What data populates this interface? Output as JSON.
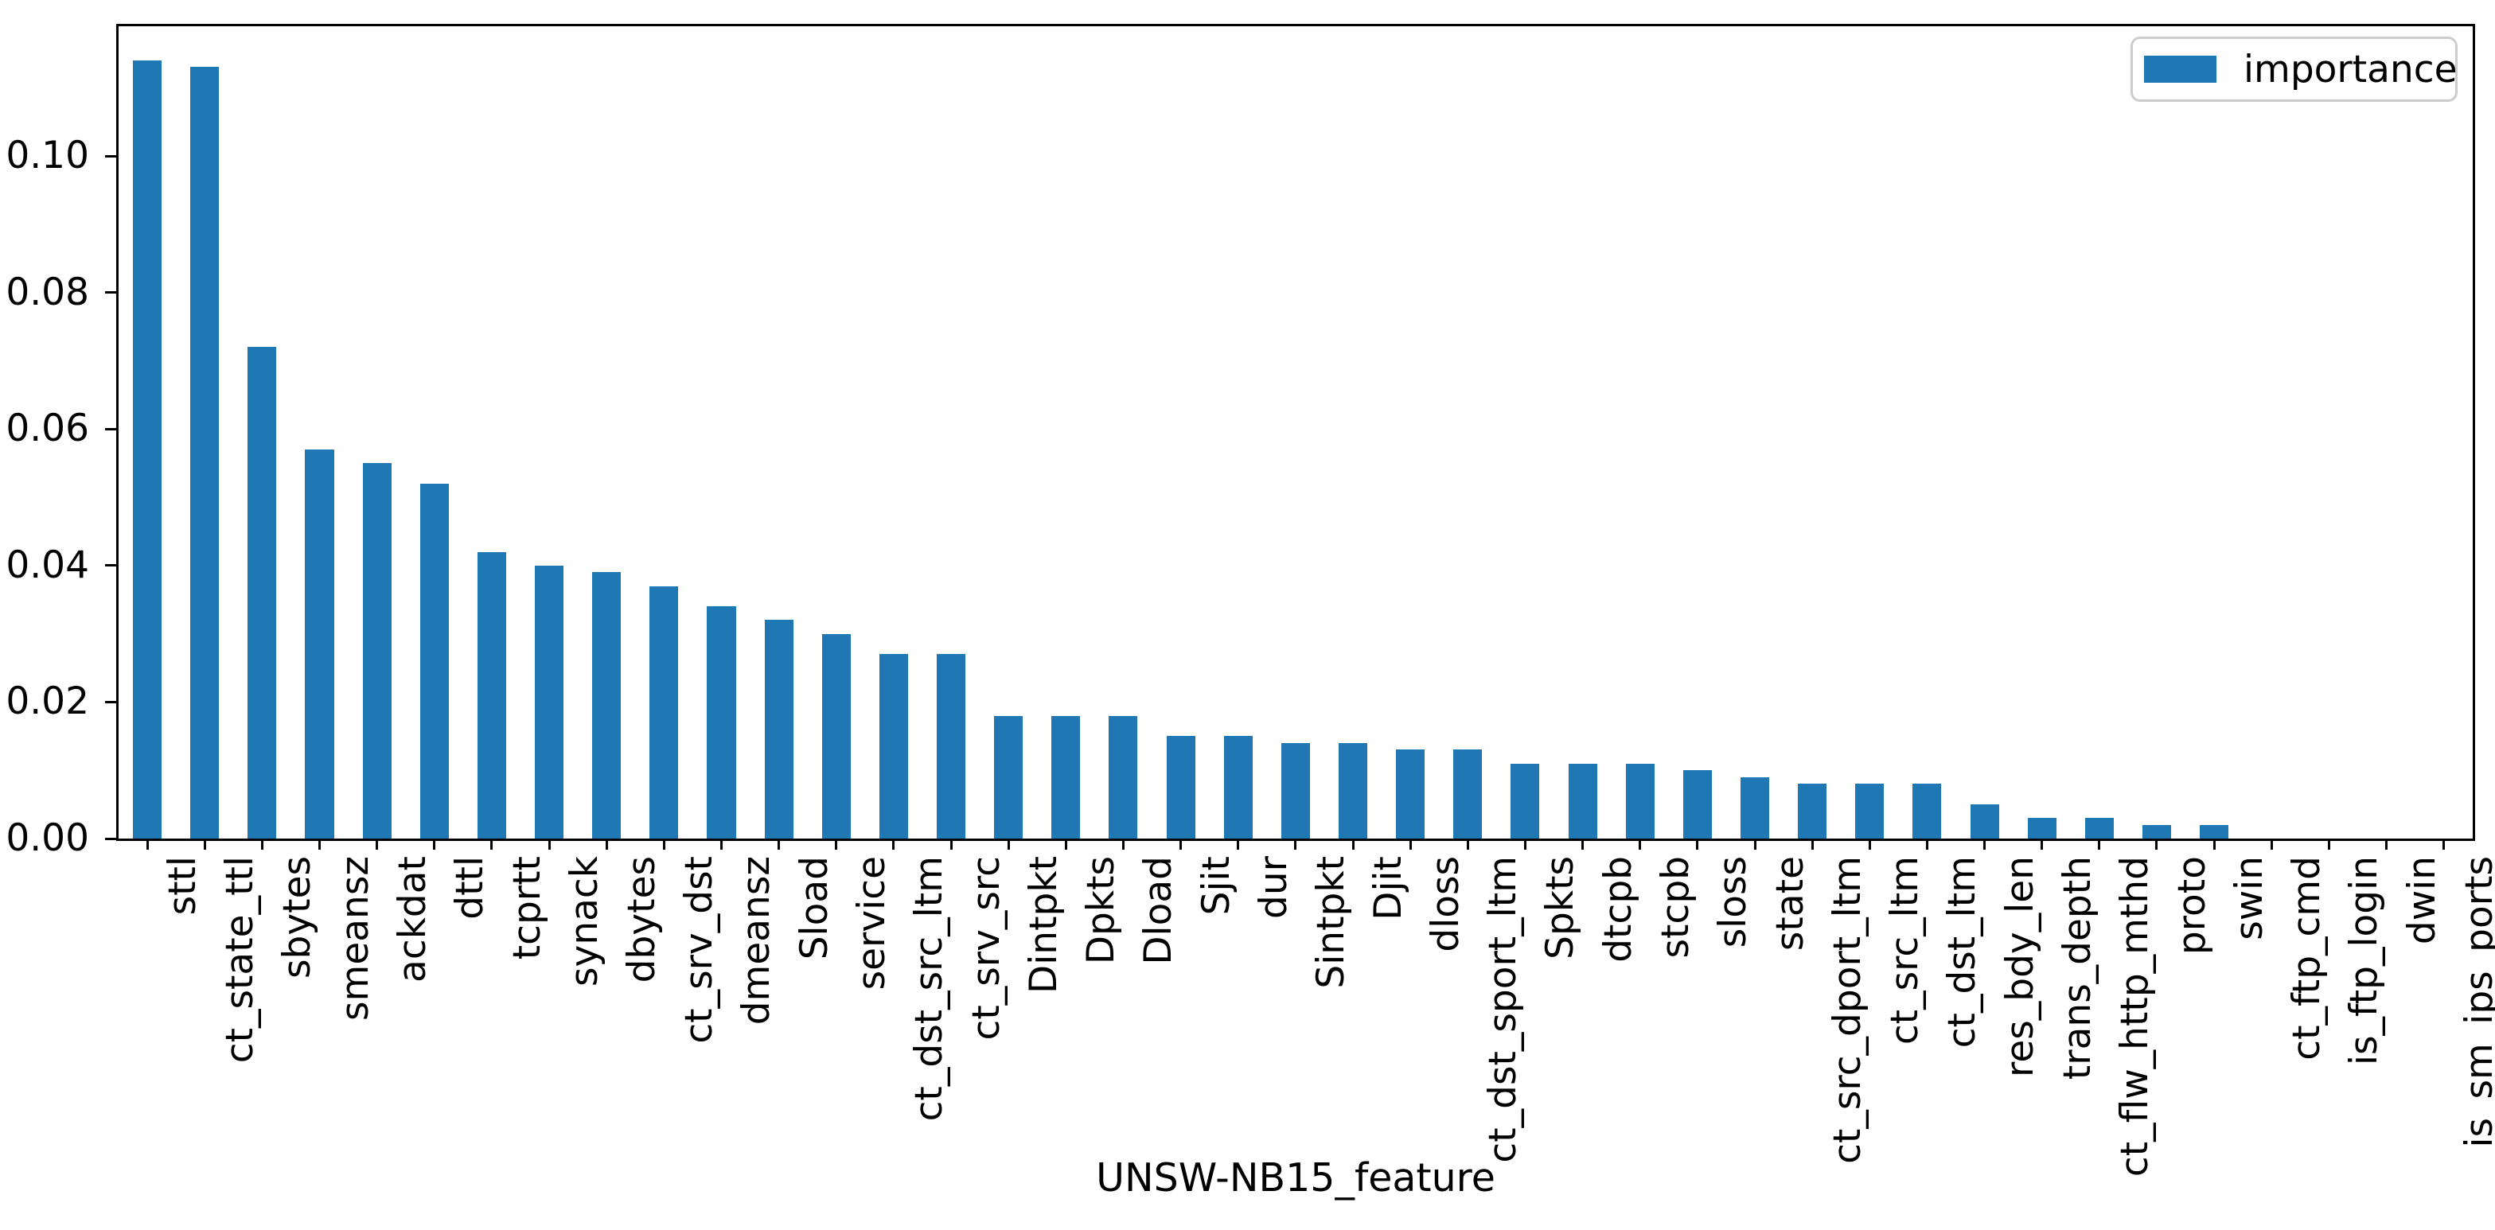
{
  "chart_data": {
    "type": "bar",
    "title": "",
    "xlabel": "UNSW-NB15_feature",
    "ylabel": "",
    "legend": {
      "label": "importance",
      "position": "upper right",
      "swatch_color": "#1f77b4"
    },
    "bar_color": "#1f77b4",
    "axis_color": "#000000",
    "background_color": "#ffffff",
    "grid": false,
    "ylim": [
      0,
      0.119
    ],
    "ytick_labels": [
      "0.00",
      "0.02",
      "0.04",
      "0.06",
      "0.08",
      "0.10"
    ],
    "ytick_values": [
      0.0,
      0.02,
      0.04,
      0.06,
      0.08,
      0.1
    ],
    "categories": [
      "sttl",
      "ct_state_ttl",
      "sbytes",
      "smeansz",
      "ackdat",
      "dttl",
      "tcprtt",
      "synack",
      "dbytes",
      "ct_srv_dst",
      "dmeansz",
      "Sload",
      "service",
      "ct_dst_src_ltm",
      "ct_srv_src",
      "Dintpkt",
      "Dpkts",
      "Dload",
      "Sjit",
      "dur",
      "Sintpkt",
      "Djit",
      "dloss",
      "ct_dst_sport_ltm",
      "Spkts",
      "dtcpb",
      "stcpb",
      "sloss",
      "state",
      "ct_src_dport_ltm",
      "ct_src_ltm",
      "ct_dst_ltm",
      "res_bdy_len",
      "trans_depth",
      "ct_flw_http_mthd",
      "proto",
      "swin",
      "ct_ftp_cmd",
      "is_ftp_login",
      "dwin",
      "is_sm_ips_ports"
    ],
    "values": [
      0.114,
      0.113,
      0.072,
      0.057,
      0.055,
      0.052,
      0.042,
      0.04,
      0.039,
      0.037,
      0.034,
      0.032,
      0.03,
      0.027,
      0.027,
      0.018,
      0.018,
      0.018,
      0.015,
      0.015,
      0.014,
      0.014,
      0.013,
      0.013,
      0.011,
      0.011,
      0.011,
      0.01,
      0.009,
      0.008,
      0.008,
      0.008,
      0.005,
      0.003,
      0.003,
      0.002,
      0.002,
      0.0,
      0.0,
      0.0,
      0.0
    ]
  }
}
